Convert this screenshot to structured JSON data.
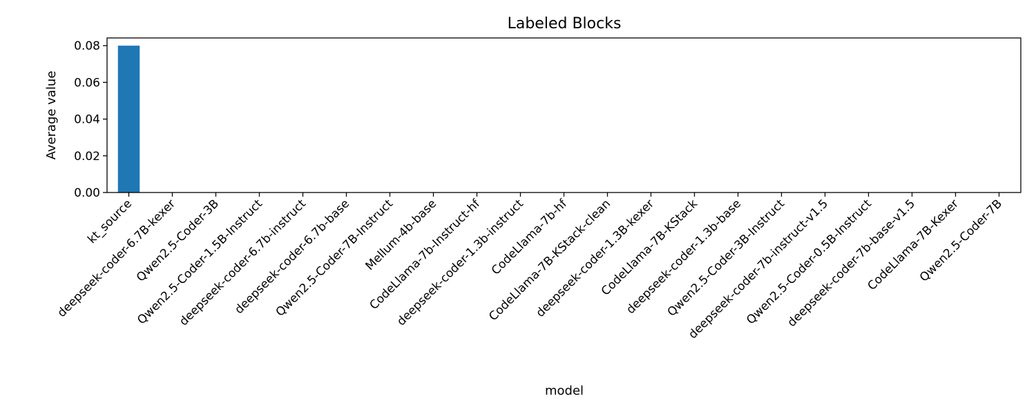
{
  "chart_data": {
    "type": "bar",
    "title": "Labeled Blocks",
    "xlabel": "model",
    "ylabel": "Average value",
    "ylim": [
      0,
      0.0842
    ],
    "yticks": [
      "0.00",
      "0.02",
      "0.04",
      "0.06",
      "0.08"
    ],
    "grid": false,
    "bar_color": "#1f77b4",
    "categories": [
      "kt_source",
      "deepseek-coder-6.7B-kexer",
      "Qwen2.5-Coder-3B",
      "Qwen2.5-Coder-1.5B-Instruct",
      "deepseek-coder-6.7b-instruct",
      "deepseek-coder-6.7b-base",
      "Qwen2.5-Coder-7B-Instruct",
      "Mellum-4b-base",
      "CodeLlama-7b-Instruct-hf",
      "deepseek-coder-1.3b-instruct",
      "CodeLlama-7b-hf",
      "CodeLlama-7B-KStack-clean",
      "deepseek-coder-1.3B-kexer",
      "CodeLlama-7B-KStack",
      "deepseek-coder-1.3b-base",
      "Qwen2.5-Coder-3B-Instruct",
      "deepseek-coder-7b-instruct-v1.5",
      "Qwen2.5-Coder-0.5B-Instruct",
      "deepseek-coder-7b-base-v1.5",
      "CodeLlama-7B-Kexer",
      "Qwen2.5-Coder-7B"
    ],
    "values": [
      0.08,
      0,
      0,
      0,
      0,
      0,
      0,
      0,
      0,
      0,
      0,
      0,
      0,
      0,
      0,
      0,
      0,
      0,
      0,
      0,
      0
    ]
  }
}
